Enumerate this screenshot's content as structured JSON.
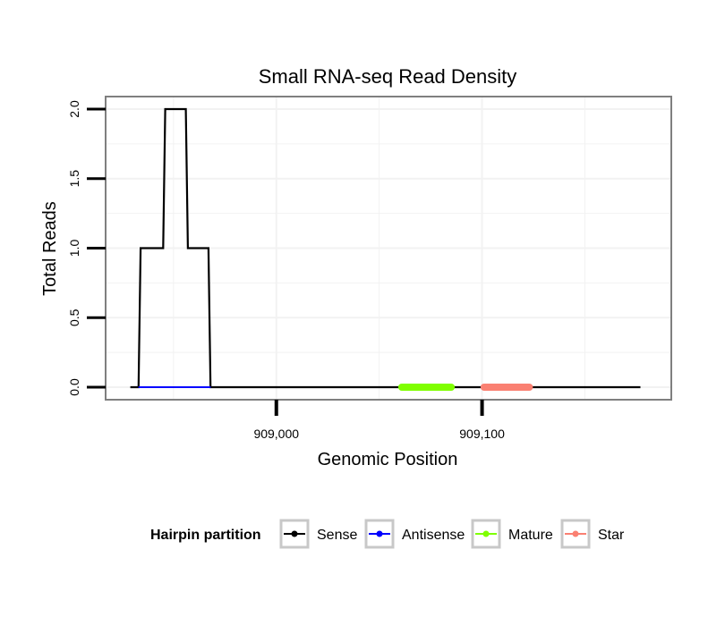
{
  "chart_data": {
    "type": "line",
    "title": "Small RNA-seq Read Density",
    "xlabel": "Genomic Position",
    "ylabel": "Total Reads",
    "xlim": [
      908917,
      909192
    ],
    "ylim": [
      -0.09,
      2.09
    ],
    "x_ticks": [
      909000,
      909100
    ],
    "x_tick_labels": [
      "909,000",
      "909,100"
    ],
    "y_ticks": [
      0.0,
      0.5,
      1.0,
      1.5,
      2.0
    ],
    "y_tick_labels": [
      "0.0",
      "0.5",
      "1.0",
      "1.5",
      "2.0"
    ],
    "grid": true,
    "legend": {
      "title": "Hairpin partition",
      "position": "bottom",
      "entries": [
        {
          "name": "Sense",
          "color": "#000000"
        },
        {
          "name": "Antisense",
          "color": "#0000ff"
        },
        {
          "name": "Mature",
          "color": "#7fff00"
        },
        {
          "name": "Star",
          "color": "#fa8072"
        }
      ]
    },
    "series": [
      {
        "name": "Sense",
        "color": "#000000",
        "x": [
          908929,
          908933,
          908934,
          908945,
          908946,
          908956,
          908957,
          908967,
          908968,
          909177
        ],
        "y": [
          0,
          0,
          1,
          1,
          2,
          2,
          1,
          1,
          0,
          0
        ]
      },
      {
        "name": "Antisense",
        "color": "#0000ff",
        "x": [
          908933,
          908968
        ],
        "y": [
          0,
          0
        ]
      },
      {
        "name": "Mature",
        "color": "#7fff00",
        "x": [
          909061,
          909085
        ],
        "y": [
          0,
          0
        ]
      },
      {
        "name": "Star",
        "color": "#fa8072",
        "x": [
          909101,
          909123
        ],
        "y": [
          0,
          0
        ]
      }
    ]
  }
}
